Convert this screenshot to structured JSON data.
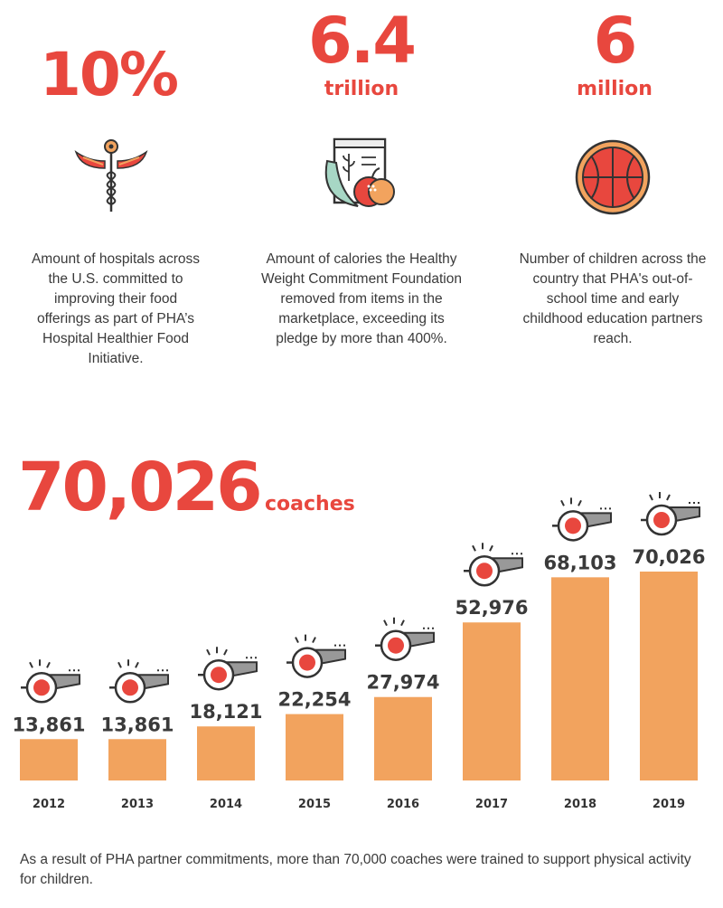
{
  "stats": [
    {
      "value": "10%",
      "unit": "",
      "icon": "caduceus-icon",
      "description": "Amount of hospitals across the U.S. committed to improving their food offerings as part of PHA’s Hospital Healthier Food Initiative."
    },
    {
      "value": "6.4",
      "unit": "trillion",
      "icon": "healthy-food-icon",
      "description": "Amount of calories the Healthy Weight Commitment Foundation removed from items in the marketplace, exceeding its pledge by more than 400%."
    },
    {
      "value": "6",
      "unit": "million",
      "icon": "basketball-icon",
      "description": "Number of children across the country that PHA's out-of-school time and early childhood education partners reach."
    }
  ],
  "headline": {
    "value": "70,026",
    "unit": "coaches"
  },
  "chart_data": {
    "type": "bar",
    "categories": [
      "2012",
      "2013",
      "2014",
      "2015",
      "2016",
      "2017",
      "2018",
      "2019"
    ],
    "values": [
      13861,
      13861,
      18121,
      22254,
      27974,
      52976,
      68103,
      70026
    ],
    "value_labels": [
      "13,861",
      "13,861",
      "18,121",
      "22,254",
      "27,974",
      "52,976",
      "68,103",
      "70,026"
    ],
    "bar_icon": "whistle-icon",
    "grid": false,
    "colors": {
      "bar": "#f2a35e",
      "label": "#3a3a3a"
    }
  },
  "footnote": "As a result of PHA partner commitments, more than 70,000 coaches were trained to support physical activity for children.",
  "colors": {
    "accent": "#e8473e",
    "orange": "#f2a35e",
    "text": "#3a3a3a"
  }
}
